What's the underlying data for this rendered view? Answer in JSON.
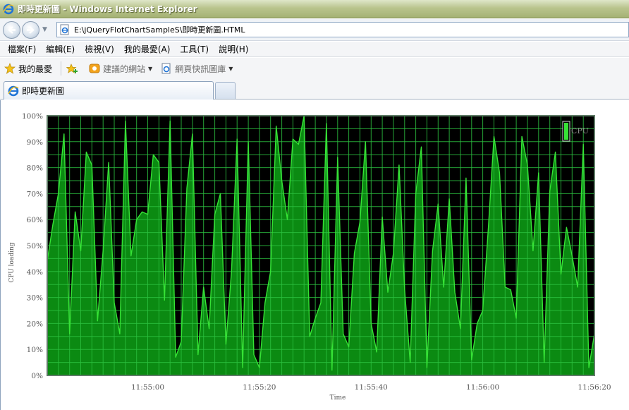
{
  "window": {
    "title": "即時更新圖 - Windows Internet Explorer"
  },
  "address": {
    "url": "E:\\jQueryFlotChartSampleS\\即時更新圖.HTML"
  },
  "menu": {
    "items": [
      "檔案(F)",
      "編輯(E)",
      "檢視(V)",
      "我的最愛(A)",
      "工具(T)",
      "說明(H)"
    ]
  },
  "favorites": {
    "label": "我的最愛",
    "suggested_sites": "建議的網站",
    "web_slice": "網頁快訊圖庫"
  },
  "tab": {
    "label": "即時更新圖"
  },
  "colors": {
    "plot_bg": "#000000",
    "grid": "#2bbf40",
    "fill": "#0b8a12",
    "line": "#36e236",
    "axis_text": "#555555"
  },
  "chart_data": {
    "type": "area",
    "xlabel": "Time",
    "ylabel": "CPU loading",
    "ylim": [
      0,
      100
    ],
    "y_ticks": [
      "0%",
      "10%",
      "20%",
      "30%",
      "40%",
      "50%",
      "60%",
      "70%",
      "80%",
      "90%",
      "100%"
    ],
    "x_ticks": [
      "11:55:00",
      "11:55:20",
      "11:55:40",
      "11:56:00",
      "11:56:20"
    ],
    "xlim": [
      "11:54:42",
      "11:56:20"
    ],
    "legend": {
      "position": "top-right",
      "entries": [
        "CPU"
      ]
    },
    "grid": true,
    "series": [
      {
        "name": "CPU",
        "x": [
          "11:54:42",
          "11:54:43",
          "11:54:44",
          "11:54:45",
          "11:54:46",
          "11:54:47",
          "11:54:48",
          "11:54:49",
          "11:54:50",
          "11:54:51",
          "11:54:52",
          "11:54:53",
          "11:54:54",
          "11:54:55",
          "11:54:56",
          "11:54:57",
          "11:54:58",
          "11:54:59",
          "11:55:00",
          "11:55:01",
          "11:55:02",
          "11:55:03",
          "11:55:04",
          "11:55:05",
          "11:55:06",
          "11:55:07",
          "11:55:08",
          "11:55:09",
          "11:55:10",
          "11:55:11",
          "11:55:12",
          "11:55:13",
          "11:55:14",
          "11:55:15",
          "11:55:16",
          "11:55:17",
          "11:55:18",
          "11:55:19",
          "11:55:20",
          "11:55:21",
          "11:55:22",
          "11:55:23",
          "11:55:24",
          "11:55:25",
          "11:55:26",
          "11:55:27",
          "11:55:28",
          "11:55:29",
          "11:55:30",
          "11:55:31",
          "11:55:32",
          "11:55:33",
          "11:55:34",
          "11:55:35",
          "11:55:36",
          "11:55:37",
          "11:55:38",
          "11:55:39",
          "11:55:40",
          "11:55:41",
          "11:55:42",
          "11:55:43",
          "11:55:44",
          "11:55:45",
          "11:55:46",
          "11:55:47",
          "11:55:48",
          "11:55:49",
          "11:55:50",
          "11:55:51",
          "11:55:52",
          "11:55:53",
          "11:55:54",
          "11:55:55",
          "11:55:56",
          "11:55:57",
          "11:55:58",
          "11:55:59",
          "11:56:00",
          "11:56:01",
          "11:56:02",
          "11:56:03",
          "11:56:04",
          "11:56:05",
          "11:56:06",
          "11:56:07",
          "11:56:08",
          "11:56:09",
          "11:56:10",
          "11:56:11",
          "11:56:12",
          "11:56:13",
          "11:56:14",
          "11:56:15",
          "11:56:16",
          "11:56:17",
          "11:56:18",
          "11:56:19",
          "11:56:20"
        ],
        "values": [
          44,
          58,
          70,
          93,
          16,
          63,
          48,
          86,
          81,
          21,
          48,
          82,
          28,
          16,
          98,
          46,
          60,
          63,
          62,
          85,
          82,
          29,
          98,
          7,
          13,
          72,
          93,
          8,
          34,
          18,
          62,
          70,
          12,
          40,
          91,
          3,
          90,
          8,
          3,
          28,
          40,
          96,
          75,
          60,
          91,
          89,
          100,
          15,
          22,
          28,
          97,
          2,
          84,
          16,
          11,
          47,
          59,
          90,
          20,
          9,
          61,
          32,
          47,
          81,
          33,
          5,
          70,
          88,
          3,
          48,
          66,
          34,
          68,
          32,
          18,
          76,
          6,
          20,
          25,
          57,
          92,
          78,
          34,
          33,
          22,
          92,
          81,
          48,
          78,
          5,
          71,
          86,
          39,
          57,
          46,
          34,
          89,
          3,
          16
        ]
      }
    ]
  }
}
